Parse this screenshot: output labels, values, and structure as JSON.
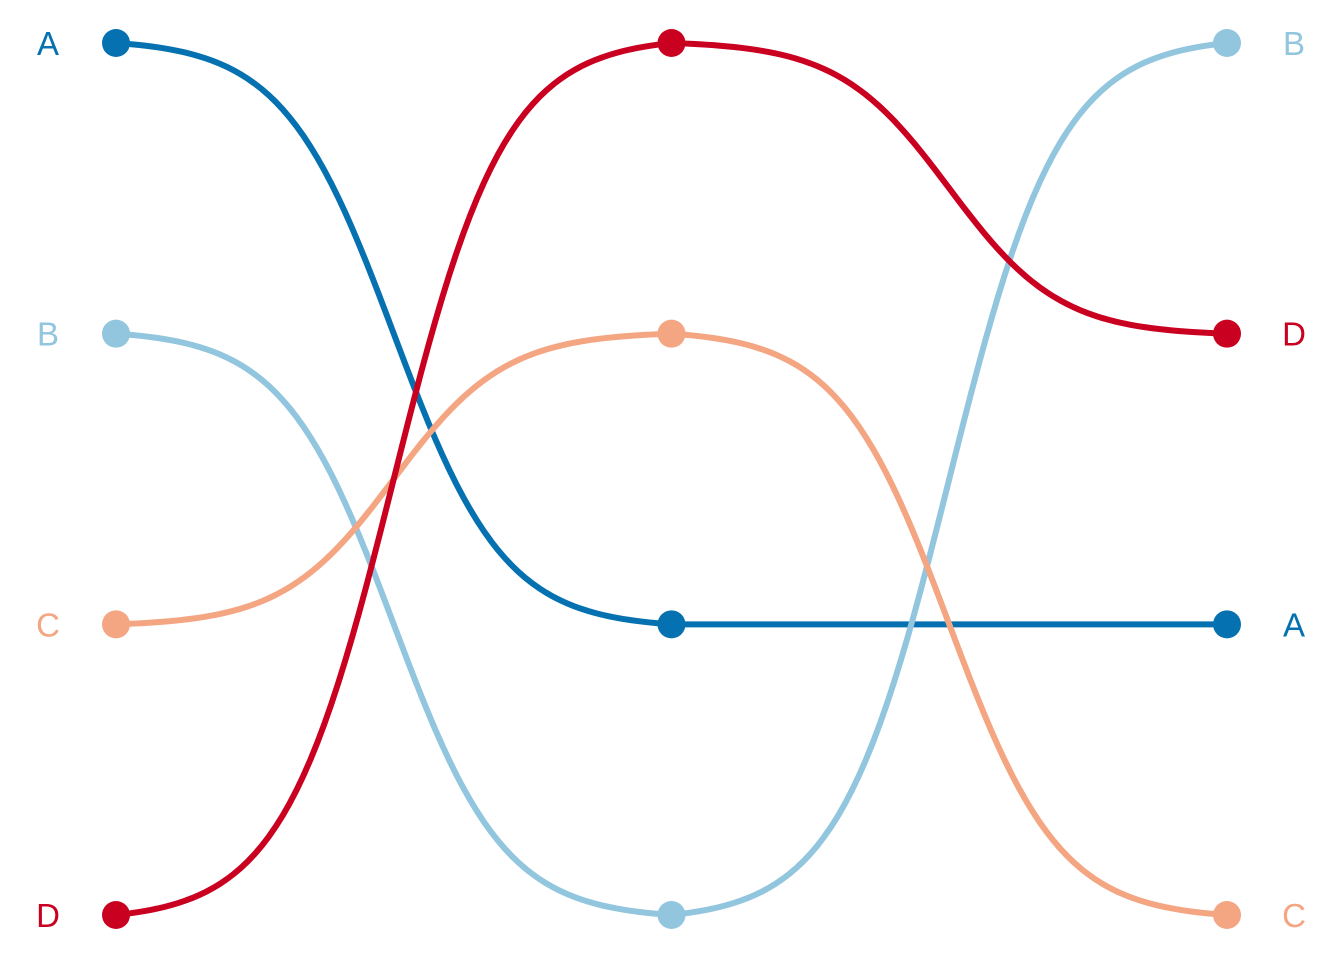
{
  "chart_data": {
    "type": "bump",
    "title": "",
    "xlabel": "",
    "ylabel": "",
    "x": [
      1,
      2,
      3
    ],
    "ylim": [
      1,
      4
    ],
    "grid": false,
    "legend": "none",
    "series": [
      {
        "name": "A",
        "color": "#0571b0",
        "ranks": [
          1,
          3,
          3
        ]
      },
      {
        "name": "B",
        "color": "#92c5de",
        "ranks": [
          2,
          4,
          1
        ]
      },
      {
        "name": "C",
        "color": "#f4a582",
        "ranks": [
          3,
          2,
          4
        ]
      },
      {
        "name": "D",
        "color": "#ca0020",
        "ranks": [
          4,
          1,
          2
        ]
      }
    ],
    "draw_order": [
      "A",
      "B",
      "C",
      "D"
    ]
  }
}
